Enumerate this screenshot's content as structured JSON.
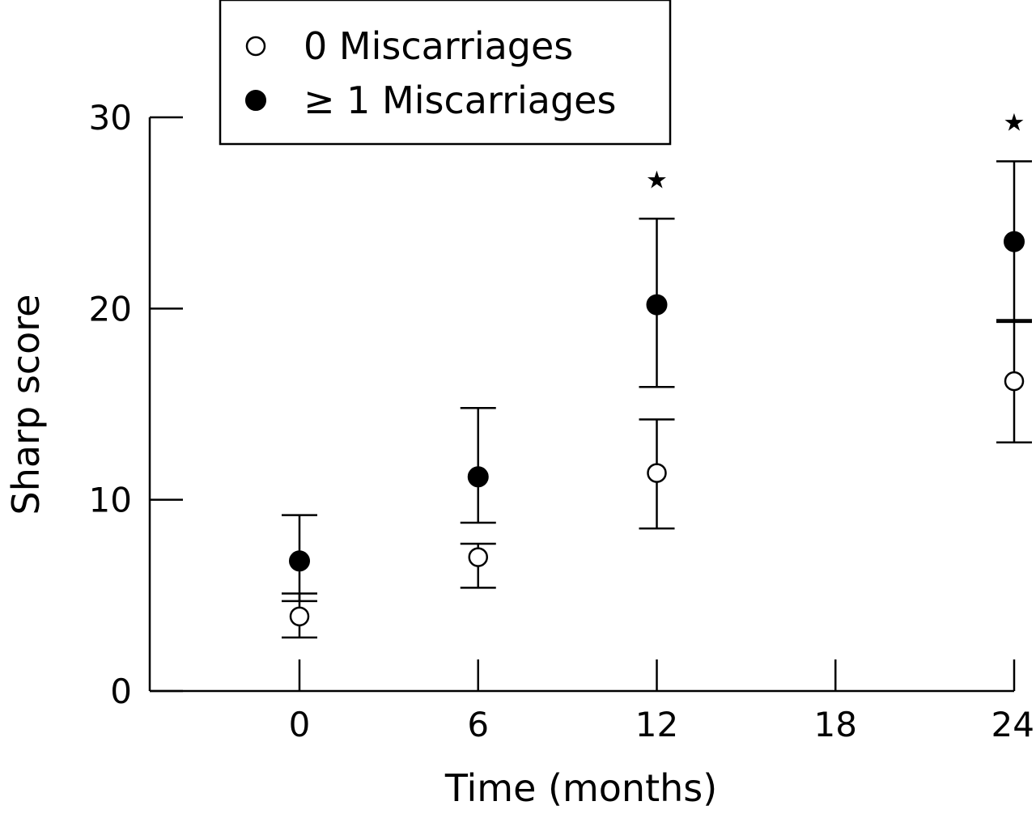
{
  "chart_data": {
    "type": "scatter",
    "xlabel": "Time (months)",
    "ylabel": "Sharp score",
    "x_ticks": [
      0,
      6,
      12,
      18,
      24
    ],
    "x_tick_labels": [
      "0",
      "6",
      "12",
      "18",
      "24"
    ],
    "y_ticks": [
      0,
      10,
      20,
      30
    ],
    "y_tick_labels": [
      "0",
      "10",
      "20",
      "30"
    ],
    "xlim": [
      -5,
      24.5
    ],
    "ylim": [
      0,
      30
    ],
    "grid": false,
    "legend_position": "top-left",
    "series": [
      {
        "name": "0 Miscarriages",
        "marker": "open-circle",
        "color": "#000000",
        "points": [
          {
            "x": 0,
            "y": 3.9,
            "err_low": 2.8,
            "err_high": 5.1
          },
          {
            "x": 6,
            "y": 7.0,
            "err_low": 5.4,
            "err_high": 7.7
          },
          {
            "x": 12,
            "y": 11.4,
            "err_low": 8.5,
            "err_high": 14.2
          },
          {
            "x": 24,
            "y": 16.2,
            "err_low": 13.0,
            "err_high": 19.4
          }
        ]
      },
      {
        "name": "≥ 1 Miscarriages",
        "marker": "filled-circle",
        "color": "#000000",
        "points": [
          {
            "x": 0,
            "y": 6.8,
            "err_low": 4.7,
            "err_high": 9.2
          },
          {
            "x": 6,
            "y": 11.2,
            "err_low": 8.8,
            "err_high": 14.8
          },
          {
            "x": 12,
            "y": 20.2,
            "err_low": 15.9,
            "err_high": 24.7
          },
          {
            "x": 24,
            "y": 23.5,
            "err_low": 19.3,
            "err_high": 27.7
          }
        ]
      }
    ],
    "annotations": [
      {
        "text": "★",
        "x": 12
      },
      {
        "text": "★",
        "x": 24
      }
    ]
  }
}
